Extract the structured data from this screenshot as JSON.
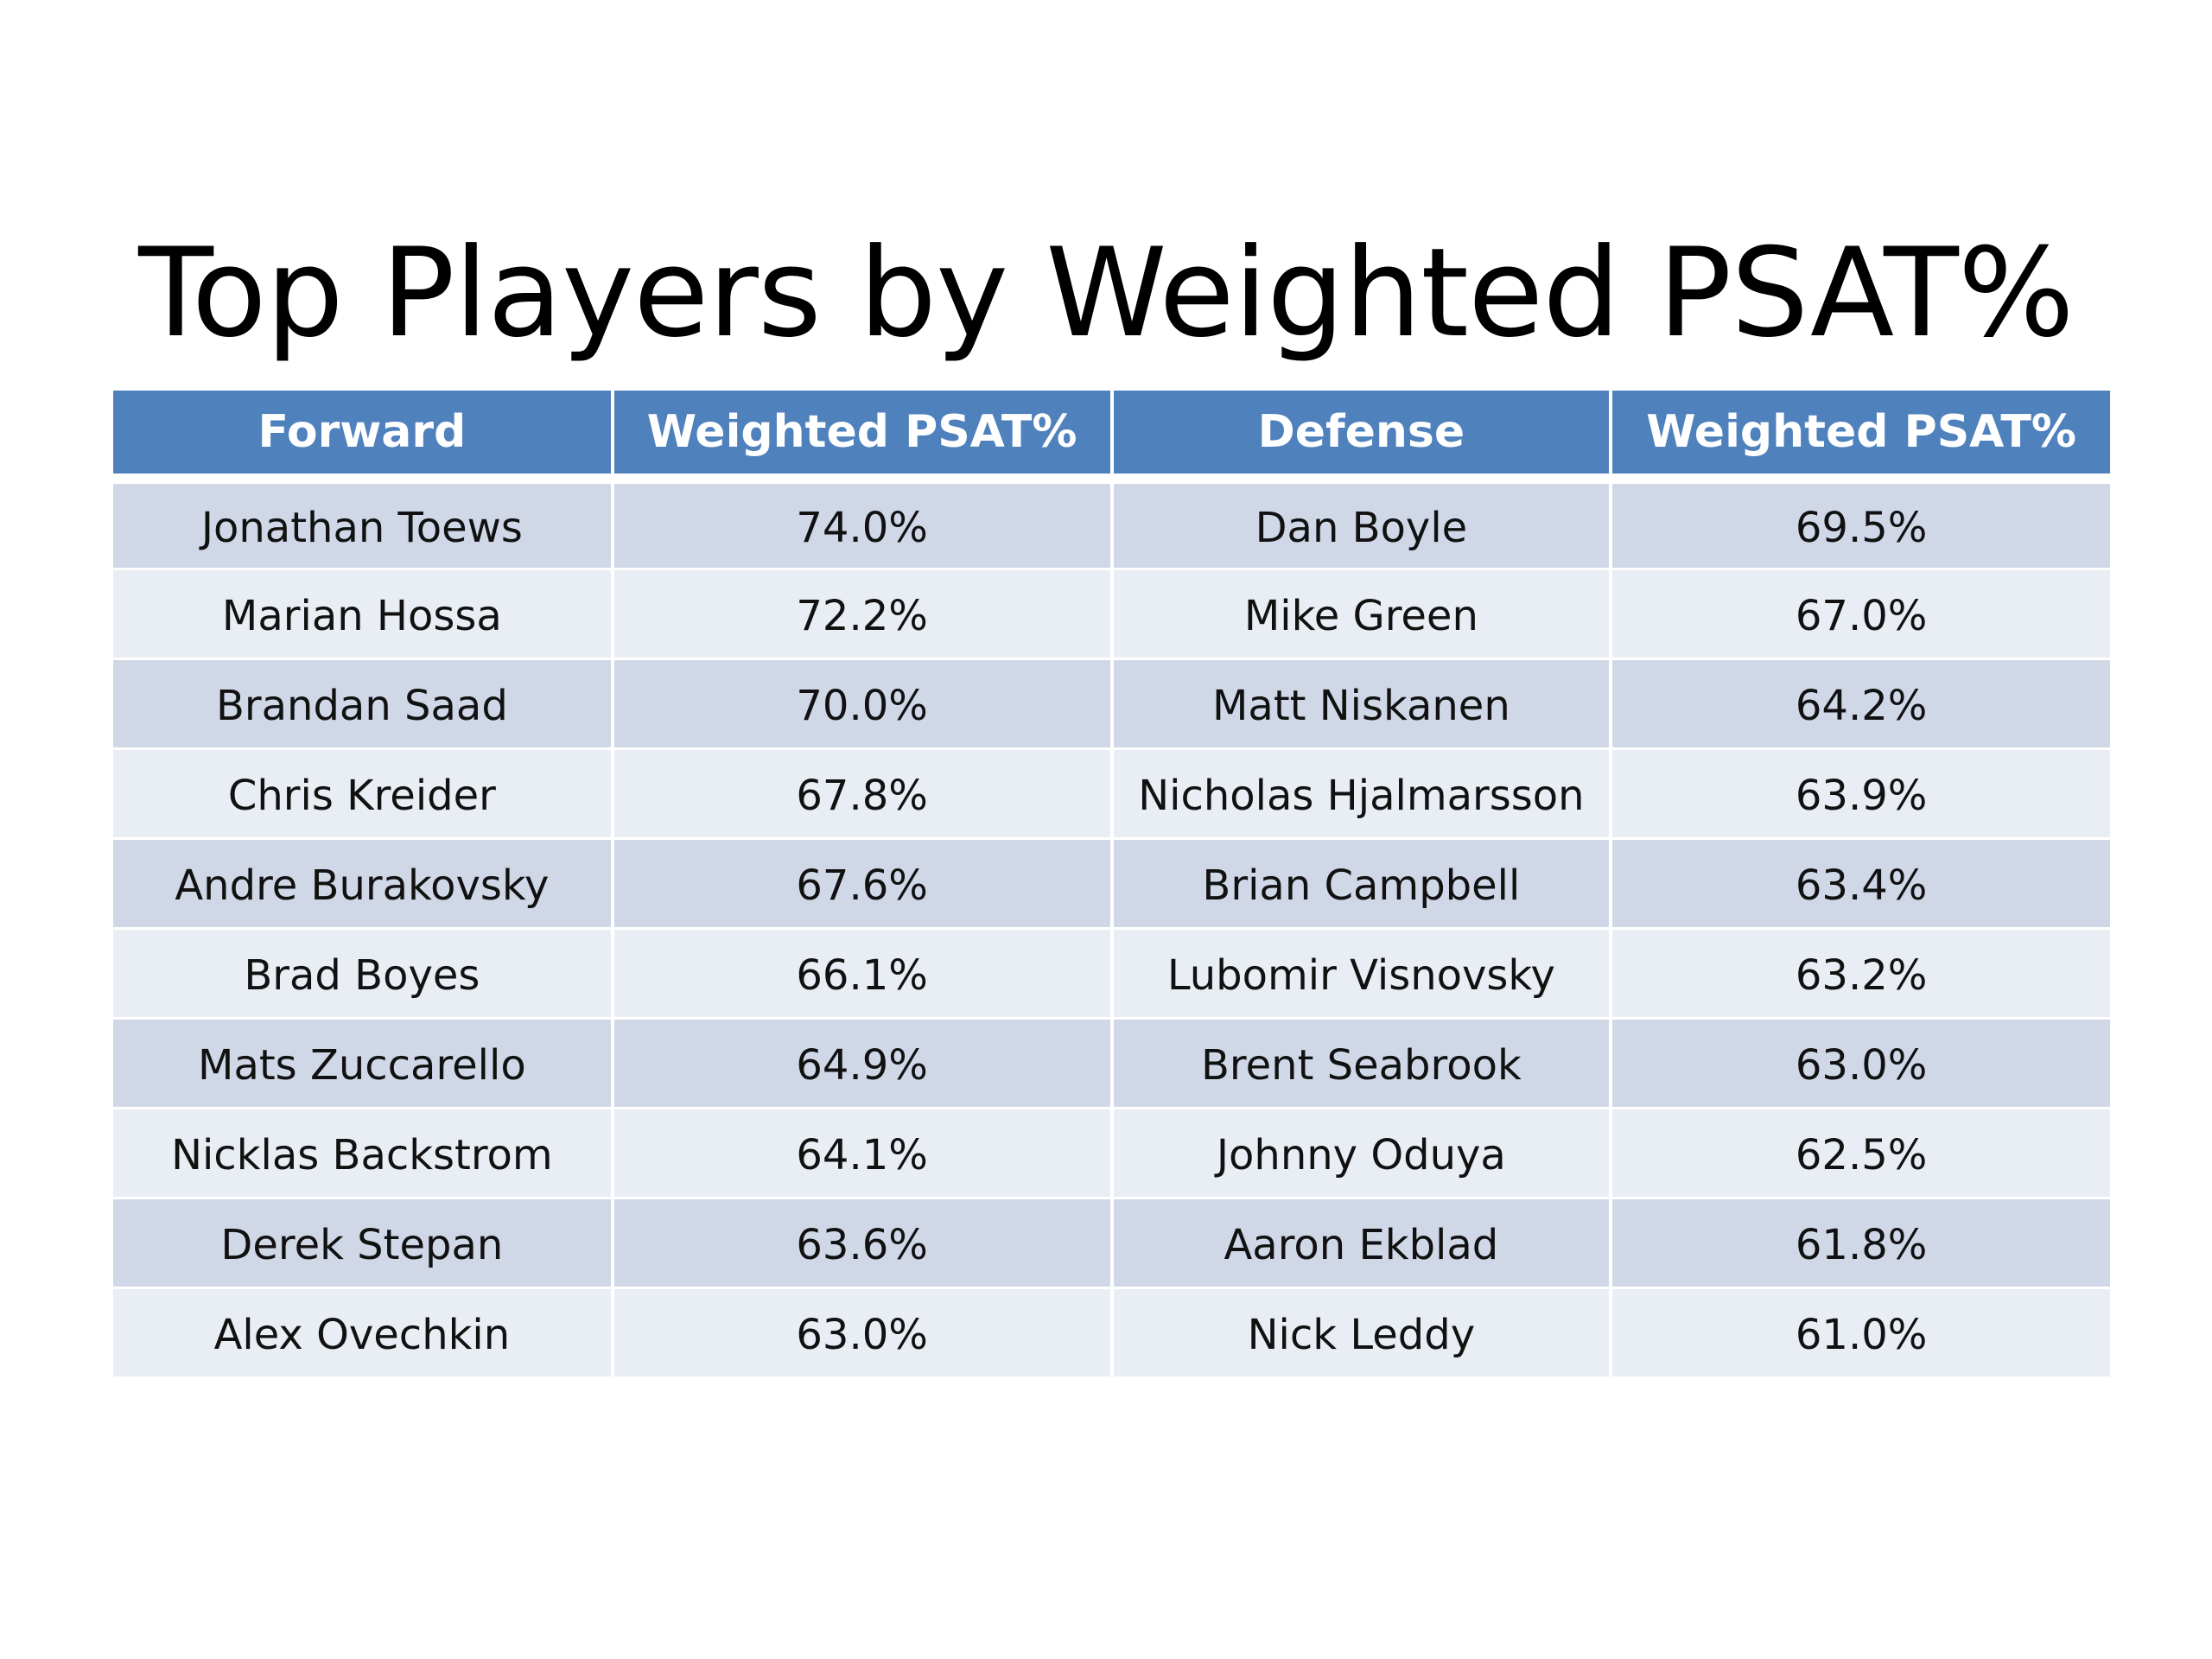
{
  "title": "Top Players by Weighted PSAT%",
  "table": {
    "headers": [
      "Forward",
      "Weighted PSAT%",
      "Defense",
      "Weighted PSAT%"
    ],
    "rows": [
      [
        "Jonathan Toews",
        "74.0%",
        "Dan Boyle",
        "69.5%"
      ],
      [
        "Marian Hossa",
        "72.2%",
        "Mike Green",
        "67.0%"
      ],
      [
        "Brandan Saad",
        "70.0%",
        "Matt Niskanen",
        "64.2%"
      ],
      [
        "Chris Kreider",
        "67.8%",
        "Nicholas Hjalmarsson",
        "63.9%"
      ],
      [
        "Andre Burakovsky",
        "67.6%",
        "Brian Campbell",
        "63.4%"
      ],
      [
        "Brad Boyes",
        "66.1%",
        "Lubomir Visnovsky",
        "63.2%"
      ],
      [
        "Mats Zuccarello",
        "64.9%",
        "Brent Seabrook",
        "63.0%"
      ],
      [
        "Nicklas Backstrom",
        "64.1%",
        "Johnny Oduya",
        "62.5%"
      ],
      [
        "Derek Stepan",
        "63.6%",
        "Aaron Ekblad",
        "61.8%"
      ],
      [
        "Alex Ovechkin",
        "63.0%",
        "Nick Leddy",
        "61.0%"
      ]
    ]
  },
  "colors": {
    "header_bg": "#4f81bd",
    "row_band_dark": "#d0d8e8",
    "row_band_light": "#e9edf4"
  }
}
